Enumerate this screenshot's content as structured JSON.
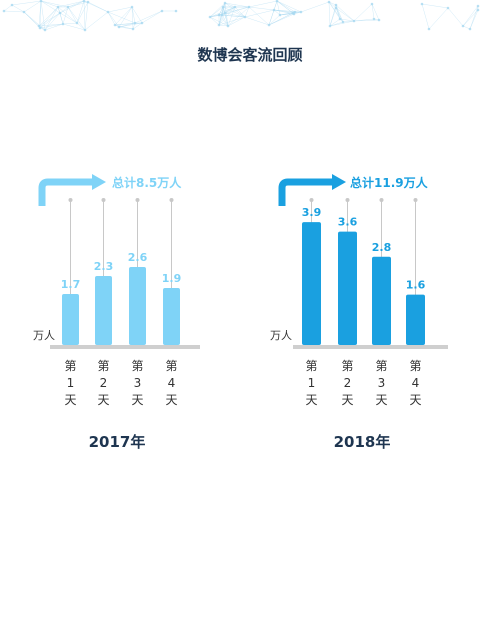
{
  "page": {
    "title": "数博会客流回顾"
  },
  "chart_data": [
    {
      "type": "bar",
      "year_label": "2017年",
      "total_label": "总计8.5万人",
      "unit_label": "万人",
      "categories": [
        "第1天",
        "第2天",
        "第3天",
        "第4天"
      ],
      "category_lines": [
        [
          "第",
          "1",
          "天"
        ],
        [
          "第",
          "2",
          "天"
        ],
        [
          "第",
          "3",
          "天"
        ],
        [
          "第",
          "4",
          "天"
        ]
      ],
      "values": [
        1.7,
        2.3,
        2.6,
        1.9
      ],
      "value_labels": [
        "1.7",
        "2.3",
        "2.6",
        "1.9"
      ],
      "ylim": [
        0,
        4
      ],
      "bar_color": "#7fd3f7",
      "arrow_color": "#7fd3f7",
      "label_color": "#7fd3f7"
    },
    {
      "type": "bar",
      "year_label": "2018年",
      "total_label": "总计11.9万人",
      "unit_label": "万人",
      "categories": [
        "第1天",
        "第2天",
        "第3天",
        "第4天"
      ],
      "category_lines": [
        [
          "第",
          "1",
          "天"
        ],
        [
          "第",
          "2",
          "天"
        ],
        [
          "第",
          "3",
          "天"
        ],
        [
          "第",
          "4",
          "天"
        ]
      ],
      "values": [
        3.9,
        3.6,
        2.8,
        1.6
      ],
      "value_labels": [
        "3.9",
        "3.6",
        "2.8",
        "1.6"
      ],
      "ylim": [
        0,
        4
      ],
      "bar_color": "#1aa0e0",
      "arrow_color": "#1aa0e0",
      "label_color": "#1aa0e0"
    }
  ],
  "colors": {
    "title": "#1e3550",
    "baseline": "#cfcfcf",
    "guide_line": "#c8c8c8",
    "network": "#a8d8f0"
  }
}
